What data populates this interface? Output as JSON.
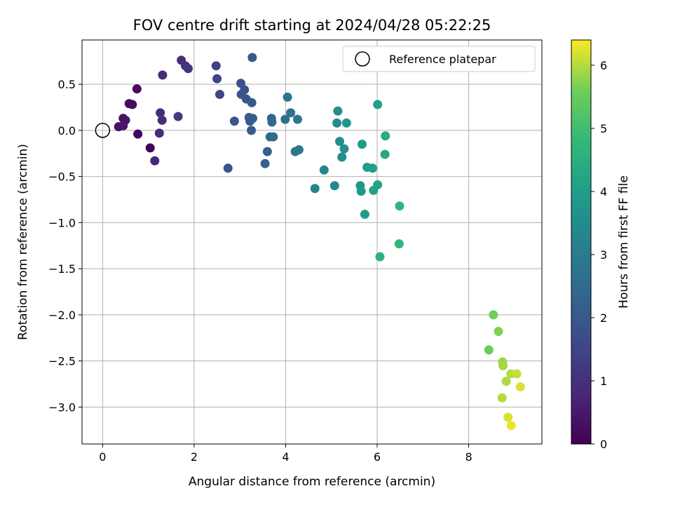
{
  "chart_data": {
    "type": "scatter",
    "title": "FOV centre drift starting at 2024/04/28 05:22:25",
    "xlabel": "Angular distance from reference (arcmin)",
    "ylabel": "Rotation from reference (arcmin)",
    "xlim": [
      -0.45,
      9.6
    ],
    "ylim": [
      -3.4,
      0.98
    ],
    "x_ticks": [
      0,
      2,
      4,
      6,
      8
    ],
    "y_ticks": [
      0.5,
      0.0,
      -0.5,
      -1.0,
      -1.5,
      -2.0,
      -2.5,
      -3.0
    ],
    "x_tick_labels": [
      "0",
      "2",
      "4",
      "6",
      "8"
    ],
    "y_tick_labels": [
      "0.5",
      "0.0",
      "−0.5",
      "−1.0",
      "−1.5",
      "−2.0",
      "−2.5",
      "−3.0"
    ],
    "grid": true,
    "legend": {
      "position": "top-right",
      "entries": [
        "Reference platepar"
      ]
    },
    "reference_point": {
      "x": 0.0,
      "y": 0.0,
      "label": "Reference platepar"
    },
    "colorbar": {
      "label": "Hours from first FF file",
      "range": [
        0,
        6.4
      ],
      "ticks": [
        0,
        1,
        2,
        3,
        4,
        5,
        6
      ],
      "colormap": "viridis"
    },
    "points": [
      {
        "x": 0.75,
        "y": 0.45,
        "c": 0.15
      },
      {
        "x": 0.58,
        "y": 0.29,
        "c": 0.2
      },
      {
        "x": 0.65,
        "y": 0.28,
        "c": 0.25
      },
      {
        "x": 0.45,
        "y": 0.13,
        "c": 0.3
      },
      {
        "x": 0.35,
        "y": 0.04,
        "c": 0.35
      },
      {
        "x": 0.5,
        "y": 0.11,
        "c": 0.4
      },
      {
        "x": 0.45,
        "y": 0.05,
        "c": 0.45
      },
      {
        "x": 0.77,
        "y": -0.04,
        "c": 0.1
      },
      {
        "x": 1.04,
        "y": -0.19,
        "c": 0.05
      },
      {
        "x": 1.14,
        "y": -0.33,
        "c": 0.8
      },
      {
        "x": 1.24,
        "y": -0.03,
        "c": 0.85
      },
      {
        "x": 1.26,
        "y": 0.19,
        "c": 0.9
      },
      {
        "x": 1.3,
        "y": 0.11,
        "c": 0.95
      },
      {
        "x": 1.31,
        "y": 0.6,
        "c": 0.9
      },
      {
        "x": 1.72,
        "y": 0.76,
        "c": 1.0
      },
      {
        "x": 1.81,
        "y": 0.7,
        "c": 1.05
      },
      {
        "x": 1.87,
        "y": 0.67,
        "c": 1.1
      },
      {
        "x": 1.65,
        "y": 0.15,
        "c": 1.25
      },
      {
        "x": 2.48,
        "y": 0.7,
        "c": 1.4
      },
      {
        "x": 2.5,
        "y": 0.56,
        "c": 1.5
      },
      {
        "x": 2.56,
        "y": 0.39,
        "c": 1.55
      },
      {
        "x": 2.74,
        "y": -0.41,
        "c": 1.9
      },
      {
        "x": 2.88,
        "y": 0.1,
        "c": 1.95
      },
      {
        "x": 3.02,
        "y": 0.51,
        "c": 1.8
      },
      {
        "x": 3.03,
        "y": 0.39,
        "c": 1.85
      },
      {
        "x": 3.1,
        "y": 0.44,
        "c": 1.8
      },
      {
        "x": 3.14,
        "y": 0.34,
        "c": 1.9
      },
      {
        "x": 3.2,
        "y": 0.14,
        "c": 2.0
      },
      {
        "x": 3.22,
        "y": 0.1,
        "c": 2.05
      },
      {
        "x": 3.26,
        "y": 0.3,
        "c": 2.1
      },
      {
        "x": 3.28,
        "y": 0.13,
        "c": 2.15
      },
      {
        "x": 3.25,
        "y": 0.0,
        "c": 2.1
      },
      {
        "x": 3.27,
        "y": 0.79,
        "c": 2.05
      },
      {
        "x": 3.55,
        "y": -0.36,
        "c": 2.2
      },
      {
        "x": 3.6,
        "y": -0.23,
        "c": 2.25
      },
      {
        "x": 3.66,
        "y": -0.07,
        "c": 2.3
      },
      {
        "x": 3.69,
        "y": 0.13,
        "c": 2.35
      },
      {
        "x": 3.7,
        "y": 0.09,
        "c": 2.4
      },
      {
        "x": 3.73,
        "y": -0.07,
        "c": 2.45
      },
      {
        "x": 3.99,
        "y": 0.12,
        "c": 2.6
      },
      {
        "x": 4.04,
        "y": 0.36,
        "c": 2.7
      },
      {
        "x": 4.11,
        "y": 0.19,
        "c": 2.75
      },
      {
        "x": 4.21,
        "y": -0.23,
        "c": 2.8
      },
      {
        "x": 4.26,
        "y": 0.12,
        "c": 2.85
      },
      {
        "x": 4.29,
        "y": -0.21,
        "c": 2.9
      },
      {
        "x": 4.64,
        "y": -0.63,
        "c": 3.25
      },
      {
        "x": 4.84,
        "y": -0.43,
        "c": 3.3
      },
      {
        "x": 5.07,
        "y": -0.6,
        "c": 3.4
      },
      {
        "x": 5.12,
        "y": 0.08,
        "c": 3.45
      },
      {
        "x": 5.14,
        "y": 0.21,
        "c": 3.5
      },
      {
        "x": 5.18,
        "y": -0.12,
        "c": 3.55
      },
      {
        "x": 5.23,
        "y": -0.29,
        "c": 3.6
      },
      {
        "x": 5.28,
        "y": -0.2,
        "c": 3.65
      },
      {
        "x": 5.33,
        "y": 0.08,
        "c": 3.7
      },
      {
        "x": 5.63,
        "y": -0.6,
        "c": 3.8
      },
      {
        "x": 5.65,
        "y": -0.66,
        "c": 3.85
      },
      {
        "x": 5.67,
        "y": -0.15,
        "c": 3.9
      },
      {
        "x": 5.73,
        "y": -0.91,
        "c": 3.95
      },
      {
        "x": 5.78,
        "y": -0.4,
        "c": 4.0
      },
      {
        "x": 5.9,
        "y": -0.41,
        "c": 4.05
      },
      {
        "x": 5.92,
        "y": -0.65,
        "c": 4.1
      },
      {
        "x": 6.01,
        "y": -0.59,
        "c": 4.15
      },
      {
        "x": 6.01,
        "y": 0.28,
        "c": 4.05
      },
      {
        "x": 6.06,
        "y": -1.37,
        "c": 4.55
      },
      {
        "x": 6.17,
        "y": -0.26,
        "c": 4.3
      },
      {
        "x": 6.18,
        "y": -0.06,
        "c": 4.4
      },
      {
        "x": 6.48,
        "y": -1.23,
        "c": 4.75
      },
      {
        "x": 6.49,
        "y": -0.82,
        "c": 4.7
      },
      {
        "x": 8.44,
        "y": -2.38,
        "c": 5.55
      },
      {
        "x": 8.54,
        "y": -2.0,
        "c": 5.6
      },
      {
        "x": 8.65,
        "y": -2.18,
        "c": 5.7
      },
      {
        "x": 8.74,
        "y": -2.51,
        "c": 5.85
      },
      {
        "x": 8.75,
        "y": -2.55,
        "c": 5.9
      },
      {
        "x": 8.73,
        "y": -2.9,
        "c": 6.0
      },
      {
        "x": 8.82,
        "y": -2.72,
        "c": 5.95
      },
      {
        "x": 8.86,
        "y": -3.11,
        "c": 6.2
      },
      {
        "x": 8.92,
        "y": -2.64,
        "c": 6.0
      },
      {
        "x": 8.93,
        "y": -3.2,
        "c": 6.3
      },
      {
        "x": 9.05,
        "y": -2.64,
        "c": 6.1
      },
      {
        "x": 9.13,
        "y": -2.78,
        "c": 6.2
      }
    ]
  }
}
